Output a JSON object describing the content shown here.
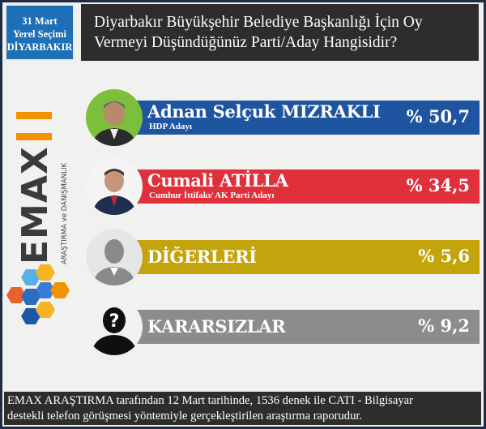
{
  "header": {
    "date_line1": "31 Mart",
    "date_line2": "Yerel Seçimi",
    "date_line3": "DİYARBAKIR",
    "question_line1": "Diyarbakır Büyükşehir Belediye Başkanlığı İçin Oy",
    "question_line2": "Vermeyi Düşündüğünüz Parti/Aday Hangisidir?"
  },
  "logo": {
    "wordmark": "EMAX",
    "tagline": "ARAŞTIRMA ve DANIŞMANLIK"
  },
  "chart_data": {
    "type": "bar",
    "categories": [
      "Adnan Selçuk MIZRAKLI",
      "Cumali ATİLLA",
      "DİĞERLERİ",
      "KARARSIZLAR"
    ],
    "subtitles": [
      "HDP Adayı",
      "Cumhur İttifakı/ AK Parti Adayı",
      "",
      ""
    ],
    "values": [
      50.7,
      34.5,
      5.6,
      9.2
    ],
    "value_labels": [
      "% 50,7",
      "% 34,5",
      "% 5,6",
      "% 9,2"
    ],
    "colors": [
      "#1f55a0",
      "#e0303c",
      "#c4a40c",
      "#8c8c8c"
    ],
    "avatar_icons": [
      "candidate-photo-icon",
      "candidate-photo-icon",
      "person-silhouette-icon",
      "question-silhouette-icon"
    ]
  },
  "footer": {
    "line1": "EMAX ARAŞTIRMA tarafından 12 Mart tarihinde, 1536 denek ile CATI - Bilgisayar",
    "line2": "destekli telefon görüşmesi yöntemiyle gerçekleştirilen araştırma raporudur."
  }
}
